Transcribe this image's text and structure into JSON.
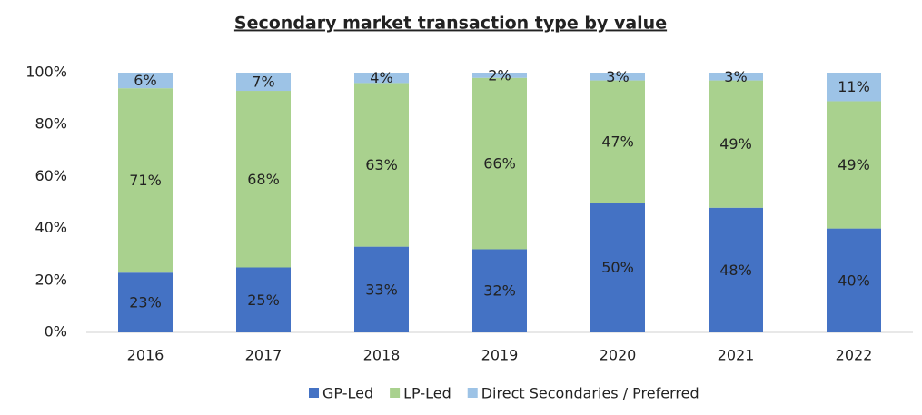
{
  "chart_data": {
    "type": "stacked-bar",
    "title": "Secondary market transaction type by value",
    "categories": [
      "2016",
      "2017",
      "2018",
      "2019",
      "2020",
      "2021",
      "2022"
    ],
    "series": [
      {
        "name": "GP-Led",
        "color": "#4472c4",
        "values": [
          23,
          25,
          33,
          32,
          50,
          48,
          40
        ],
        "value_labels": [
          "23%",
          "25%",
          "33%",
          "32%",
          "50%",
          "48%",
          "40%"
        ]
      },
      {
        "name": "LP-Led",
        "color": "#a9d18e",
        "values": [
          71,
          68,
          63,
          66,
          47,
          49,
          49
        ],
        "value_labels": [
          "71%",
          "68%",
          "63%",
          "66%",
          "47%",
          "49%",
          "49%"
        ]
      },
      {
        "name": "Direct Secondaries / Preferred",
        "color": "#9dc3e6",
        "values": [
          6,
          7,
          4,
          2,
          3,
          3,
          11
        ],
        "value_labels": [
          "6%",
          "7%",
          "4%",
          "2%",
          "3%",
          "3%",
          "11%"
        ]
      }
    ],
    "ylim": [
      0,
      100
    ],
    "yticks": [
      {
        "value": 0,
        "label": "0%"
      },
      {
        "value": 20,
        "label": "20%"
      },
      {
        "value": 40,
        "label": "40%"
      },
      {
        "value": 60,
        "label": "60%"
      },
      {
        "value": 80,
        "label": "80%"
      },
      {
        "value": 100,
        "label": "100%"
      }
    ],
    "legend": "bottom"
  }
}
